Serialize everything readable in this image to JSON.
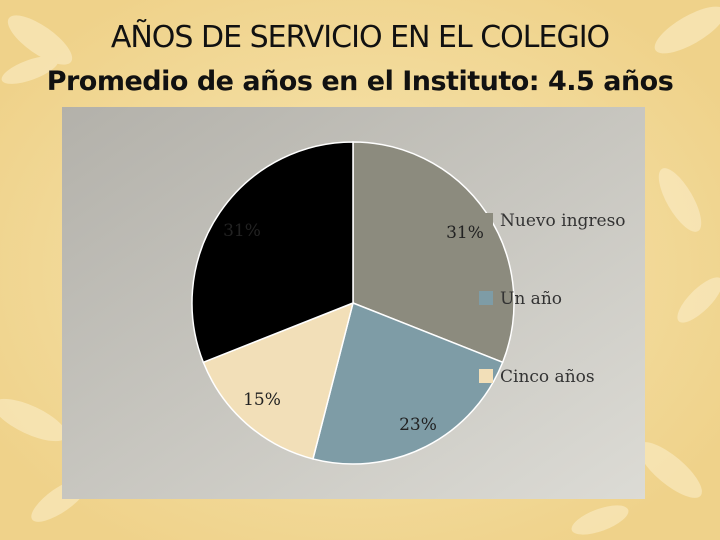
{
  "slide": {
    "title": "AÑOS DE SERVICIO EN EL COLEGIO",
    "subtitle": "Promedio de años en el Instituto: 4.5 años",
    "background_color": "#f3dd9c"
  },
  "chart_data": {
    "type": "pie",
    "title": "",
    "slices": [
      {
        "label": "Nuevo ingreso",
        "value": 31,
        "display": "31%",
        "color": "#8c8b7e"
      },
      {
        "label": "Un año",
        "value": 23,
        "display": "23%",
        "color": "#7e9ca6"
      },
      {
        "label": "Cinco años",
        "value": 15,
        "display": "15%",
        "color": "#f2dfb8"
      },
      {
        "label": "",
        "value": 31,
        "display": "31%",
        "color": "#000000"
      }
    ],
    "legend": {
      "placement": "right",
      "entries": [
        "Nuevo ingreso",
        "Un año",
        "Cinco años"
      ]
    },
    "plot_background": "#c9c7c0"
  }
}
